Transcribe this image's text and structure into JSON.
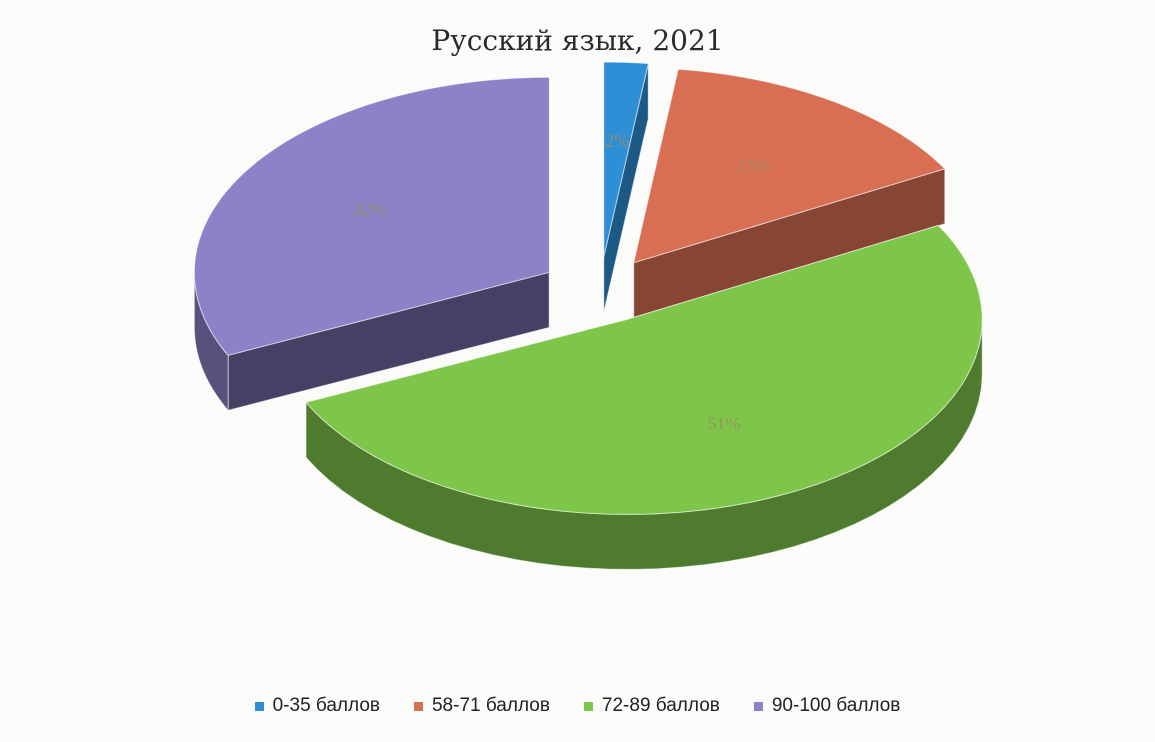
{
  "chart_data": {
    "type": "pie",
    "title": "Русский язык, 2021",
    "categories": [
      "0-35 баллов",
      "58-71 баллов",
      "72-89 баллов",
      "90-100 баллов"
    ],
    "values": [
      2,
      15,
      51,
      32
    ],
    "data_labels": [
      "2%",
      "15%",
      "51%",
      "32%"
    ],
    "colors": [
      "#2f8fd6",
      "#d96f52",
      "#7ec64a",
      "#8c82c8"
    ],
    "exploded": true,
    "three_d": true,
    "legend_position": "bottom"
  }
}
